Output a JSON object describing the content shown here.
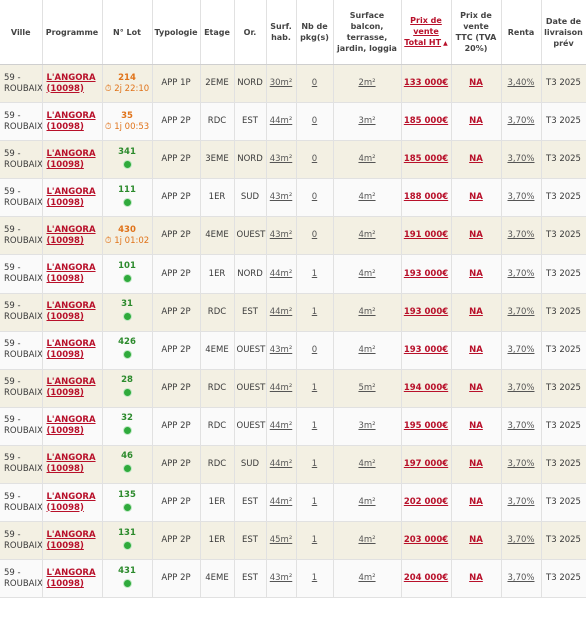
{
  "headers": {
    "ville": "Ville",
    "programme": "Programme",
    "lot": "N° Lot",
    "typologie": "Typologie",
    "etage": "Etage",
    "or": "Or.",
    "surf": "Surf. hab.",
    "pkg": "Nb de pkg(s)",
    "balcon": "Surface balcon, terrasse, jardin, loggia",
    "prix_ht": "Prix de vente Total HT",
    "prix_ttc": "Prix de vente TTC (TVA 20%)",
    "renta": "Renta",
    "livraison": "Date de livraison prév"
  },
  "rows": [
    {
      "ville": "59 - ROUBAIX",
      "prog": "L'ANGORA",
      "code": "(10098)",
      "lot": "214",
      "status": "timer",
      "timer": "2j 22:10",
      "typo": "APP 1P",
      "etage": "2EME",
      "or": "NORD",
      "surf": "30m²",
      "pkg": "0",
      "balcon": "2m²",
      "prix": "133 000€",
      "ttc": "NA",
      "renta": "3,40%",
      "livr": "T3 2025"
    },
    {
      "ville": "59 - ROUBAIX",
      "prog": "L'ANGORA",
      "code": "(10098)",
      "lot": "35",
      "status": "timer",
      "timer": "1j 00:53",
      "typo": "APP 2P",
      "etage": "RDC",
      "or": "EST",
      "surf": "44m²",
      "pkg": "0",
      "balcon": "3m²",
      "prix": "185 000€",
      "ttc": "NA",
      "renta": "3,70%",
      "livr": "T3 2025"
    },
    {
      "ville": "59 - ROUBAIX",
      "prog": "L'ANGORA",
      "code": "(10098)",
      "lot": "341",
      "status": "dot",
      "timer": "",
      "typo": "APP 2P",
      "etage": "3EME",
      "or": "NORD",
      "surf": "43m²",
      "pkg": "0",
      "balcon": "4m²",
      "prix": "185 000€",
      "ttc": "NA",
      "renta": "3,70%",
      "livr": "T3 2025"
    },
    {
      "ville": "59 - ROUBAIX",
      "prog": "L'ANGORA",
      "code": "(10098)",
      "lot": "111",
      "status": "dot",
      "timer": "",
      "typo": "APP 2P",
      "etage": "1ER",
      "or": "SUD",
      "surf": "43m²",
      "pkg": "0",
      "balcon": "4m²",
      "prix": "188 000€",
      "ttc": "NA",
      "renta": "3,70%",
      "livr": "T3 2025"
    },
    {
      "ville": "59 - ROUBAIX",
      "prog": "L'ANGORA",
      "code": "(10098)",
      "lot": "430",
      "status": "timer",
      "timer": "1j 01:02",
      "typo": "APP 2P",
      "etage": "4EME",
      "or": "OUEST",
      "surf": "43m²",
      "pkg": "0",
      "balcon": "4m²",
      "prix": "191 000€",
      "ttc": "NA",
      "renta": "3,70%",
      "livr": "T3 2025"
    },
    {
      "ville": "59 - ROUBAIX",
      "prog": "L'ANGORA",
      "code": "(10098)",
      "lot": "101",
      "status": "dot",
      "timer": "",
      "typo": "APP 2P",
      "etage": "1ER",
      "or": "NORD",
      "surf": "44m²",
      "pkg": "1",
      "balcon": "4m²",
      "prix": "193 000€",
      "ttc": "NA",
      "renta": "3,70%",
      "livr": "T3 2025"
    },
    {
      "ville": "59 - ROUBAIX",
      "prog": "L'ANGORA",
      "code": "(10098)",
      "lot": "31",
      "status": "dot",
      "timer": "",
      "typo": "APP 2P",
      "etage": "RDC",
      "or": "EST",
      "surf": "44m²",
      "pkg": "1",
      "balcon": "4m²",
      "prix": "193 000€",
      "ttc": "NA",
      "renta": "3,70%",
      "livr": "T3 2025"
    },
    {
      "ville": "59 - ROUBAIX",
      "prog": "L'ANGORA",
      "code": "(10098)",
      "lot": "426",
      "status": "dot",
      "timer": "",
      "typo": "APP 2P",
      "etage": "4EME",
      "or": "OUEST",
      "surf": "43m²",
      "pkg": "0",
      "balcon": "4m²",
      "prix": "193 000€",
      "ttc": "NA",
      "renta": "3,70%",
      "livr": "T3 2025"
    },
    {
      "ville": "59 - ROUBAIX",
      "prog": "L'ANGORA",
      "code": "(10098)",
      "lot": "28",
      "status": "dot",
      "timer": "",
      "typo": "APP 2P",
      "etage": "RDC",
      "or": "OUEST",
      "surf": "44m²",
      "pkg": "1",
      "balcon": "5m²",
      "prix": "194 000€",
      "ttc": "NA",
      "renta": "3,70%",
      "livr": "T3 2025"
    },
    {
      "ville": "59 - ROUBAIX",
      "prog": "L'ANGORA",
      "code": "(10098)",
      "lot": "32",
      "status": "dot",
      "timer": "",
      "typo": "APP 2P",
      "etage": "RDC",
      "or": "OUEST",
      "surf": "44m²",
      "pkg": "1",
      "balcon": "3m²",
      "prix": "195 000€",
      "ttc": "NA",
      "renta": "3,70%",
      "livr": "T3 2025"
    },
    {
      "ville": "59 - ROUBAIX",
      "prog": "L'ANGORA",
      "code": "(10098)",
      "lot": "46",
      "status": "dot",
      "timer": "",
      "typo": "APP 2P",
      "etage": "RDC",
      "or": "SUD",
      "surf": "44m²",
      "pkg": "1",
      "balcon": "4m²",
      "prix": "197 000€",
      "ttc": "NA",
      "renta": "3,70%",
      "livr": "T3 2025"
    },
    {
      "ville": "59 - ROUBAIX",
      "prog": "L'ANGORA",
      "code": "(10098)",
      "lot": "135",
      "status": "dot",
      "timer": "",
      "typo": "APP 2P",
      "etage": "1ER",
      "or": "EST",
      "surf": "44m²",
      "pkg": "1",
      "balcon": "4m²",
      "prix": "202 000€",
      "ttc": "NA",
      "renta": "3,70%",
      "livr": "T3 2025"
    },
    {
      "ville": "59 - ROUBAIX",
      "prog": "L'ANGORA",
      "code": "(10098)",
      "lot": "131",
      "status": "dot",
      "timer": "",
      "typo": "APP 2P",
      "etage": "1ER",
      "or": "EST",
      "surf": "45m²",
      "pkg": "1",
      "balcon": "4m²",
      "prix": "203 000€",
      "ttc": "NA",
      "renta": "3,70%",
      "livr": "T3 2025"
    },
    {
      "ville": "59 - ROUBAIX",
      "prog": "L'ANGORA",
      "code": "(10098)",
      "lot": "431",
      "status": "dot",
      "timer": "",
      "typo": "APP 2P",
      "etage": "4EME",
      "or": "EST",
      "surf": "43m²",
      "pkg": "1",
      "balcon": "4m²",
      "prix": "204 000€",
      "ttc": "NA",
      "renta": "3,70%",
      "livr": "T3 2025"
    }
  ],
  "colors": {
    "accent": "#b8102a",
    "timer": "#e0731a",
    "available": "#2faa3c",
    "stripe": "#f3f0e3"
  },
  "icons": {
    "timer": "stopwatch-icon",
    "available": "available-dot-icon",
    "sort": "sort-up-icon"
  }
}
